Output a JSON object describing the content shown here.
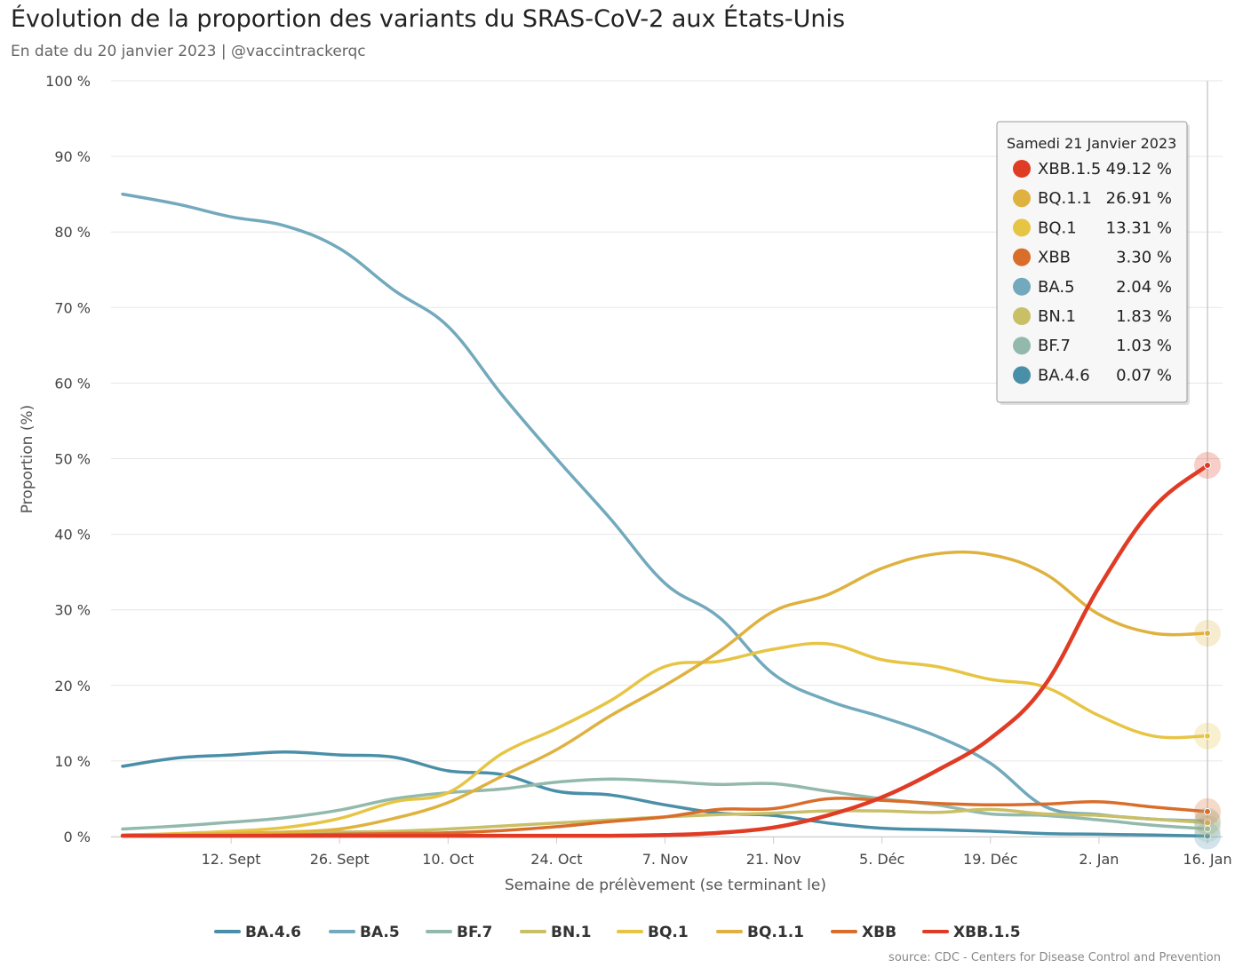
{
  "chart_data": {
    "type": "line",
    "title": "Évolution de la proportion des variants du SRAS-CoV-2 aux États-Unis",
    "subtitle": "En date du 20 janvier 2023 | @vaccintrackerqc",
    "xlabel": "Semaine de prélèvement (se terminant le)",
    "ylabel": "Proportion (%)",
    "ylim": [
      0,
      100
    ],
    "yticks": [
      0,
      10,
      20,
      30,
      40,
      50,
      60,
      70,
      80,
      90,
      100
    ],
    "ytick_suffix": " %",
    "x_tick_labels": [
      "12. Sept",
      "26. Sept",
      "10. Oct",
      "24. Oct",
      "7. Nov",
      "21. Nov",
      "5. Déc",
      "19. Déc",
      "2. Jan",
      "16. Jan"
    ],
    "x_tick_index": [
      2,
      4,
      6,
      8,
      10,
      12,
      14,
      16,
      18,
      20
    ],
    "x": [
      "2022-09-03",
      "2022-09-10",
      "2022-09-17",
      "2022-09-24",
      "2022-10-01",
      "2022-10-08",
      "2022-10-15",
      "2022-10-22",
      "2022-10-29",
      "2022-11-05",
      "2022-11-12",
      "2022-11-19",
      "2022-11-26",
      "2022-12-03",
      "2022-12-10",
      "2022-12-17",
      "2022-12-24",
      "2022-12-31",
      "2023-01-07",
      "2023-01-14",
      "2023-01-21"
    ],
    "grid": true,
    "legend_position": "bottom",
    "series": [
      {
        "name": "BA.4.6",
        "color": "#4a8fa8",
        "values": [
          9.3,
          10.4,
          10.8,
          11.2,
          10.8,
          10.5,
          8.7,
          8.2,
          6.0,
          5.5,
          4.2,
          3.1,
          2.8,
          1.8,
          1.1,
          0.9,
          0.7,
          0.4,
          0.3,
          0.2,
          0.07
        ]
      },
      {
        "name": "BA.5",
        "color": "#72a9bd",
        "values": [
          85.0,
          83.7,
          82.0,
          80.8,
          77.8,
          72.3,
          67.5,
          58.4,
          50.0,
          42.0,
          33.5,
          29.0,
          21.5,
          18.0,
          15.8,
          13.3,
          9.7,
          4.0,
          2.9,
          2.3,
          2.04
        ]
      },
      {
        "name": "BF.7",
        "color": "#93b9ad",
        "values": [
          1.0,
          1.4,
          1.9,
          2.5,
          3.5,
          5.0,
          5.8,
          6.3,
          7.2,
          7.6,
          7.3,
          6.9,
          7.0,
          6.0,
          5.0,
          4.2,
          3.0,
          2.8,
          2.2,
          1.5,
          1.03
        ]
      },
      {
        "name": "BN.1",
        "color": "#c8bf66",
        "values": [
          0.2,
          0.3,
          0.4,
          0.5,
          0.6,
          0.7,
          1.0,
          1.4,
          1.8,
          2.2,
          2.6,
          2.9,
          3.1,
          3.4,
          3.4,
          3.2,
          3.6,
          3.0,
          2.8,
          2.3,
          1.83
        ]
      },
      {
        "name": "BQ.1",
        "color": "#e7c544",
        "values": [
          0.2,
          0.4,
          0.7,
          1.2,
          2.4,
          4.6,
          5.8,
          11.0,
          14.3,
          18.0,
          22.5,
          23.2,
          24.8,
          25.5,
          23.4,
          22.5,
          20.8,
          19.8,
          16.0,
          13.3,
          13.31
        ]
      },
      {
        "name": "BQ.1.1",
        "color": "#dfb23f",
        "values": [
          0.2,
          0.3,
          0.4,
          0.6,
          1.0,
          2.4,
          4.5,
          8.0,
          11.5,
          16.0,
          20.0,
          24.5,
          29.8,
          32.0,
          35.5,
          37.4,
          37.3,
          34.8,
          29.4,
          26.91,
          26.91
        ]
      },
      {
        "name": "XBB",
        "color": "#d96d2a",
        "values": [
          0.1,
          0.1,
          0.1,
          0.2,
          0.3,
          0.4,
          0.5,
          0.8,
          1.3,
          2.0,
          2.6,
          3.6,
          3.7,
          5.0,
          4.8,
          4.4,
          4.2,
          4.3,
          4.6,
          3.9,
          3.3
        ]
      },
      {
        "name": "XBB.1.5",
        "color": "#e03b24",
        "values": [
          0.1,
          0.1,
          0.1,
          0.1,
          0.1,
          0.1,
          0.1,
          0.1,
          0.1,
          0.1,
          0.2,
          0.5,
          1.2,
          2.8,
          5.2,
          8.7,
          13.0,
          20.0,
          33.0,
          43.5,
          49.12
        ]
      }
    ],
    "tooltip": {
      "header": "Samedi 21 Janvier 2023",
      "rows": [
        {
          "name": "XBB.1.5",
          "value": "49.12 %",
          "color": "#e03b24"
        },
        {
          "name": "BQ.1.1",
          "value": "26.91 %",
          "color": "#dfb23f"
        },
        {
          "name": "BQ.1",
          "value": "13.31 %",
          "color": "#e7c544"
        },
        {
          "name": "XBB",
          "value": "3.30 %",
          "color": "#d96d2a"
        },
        {
          "name": "BA.5",
          "value": "2.04 %",
          "color": "#72a9bd"
        },
        {
          "name": "BN.1",
          "value": "1.83 %",
          "color": "#c8bf66"
        },
        {
          "name": "BF.7",
          "value": "1.03 %",
          "color": "#93b9ad"
        },
        {
          "name": "BA.4.6",
          "value": "0.07 %",
          "color": "#4a8fa8"
        }
      ]
    }
  },
  "source": "source: CDC - Centers for Disease Control and Prevention"
}
